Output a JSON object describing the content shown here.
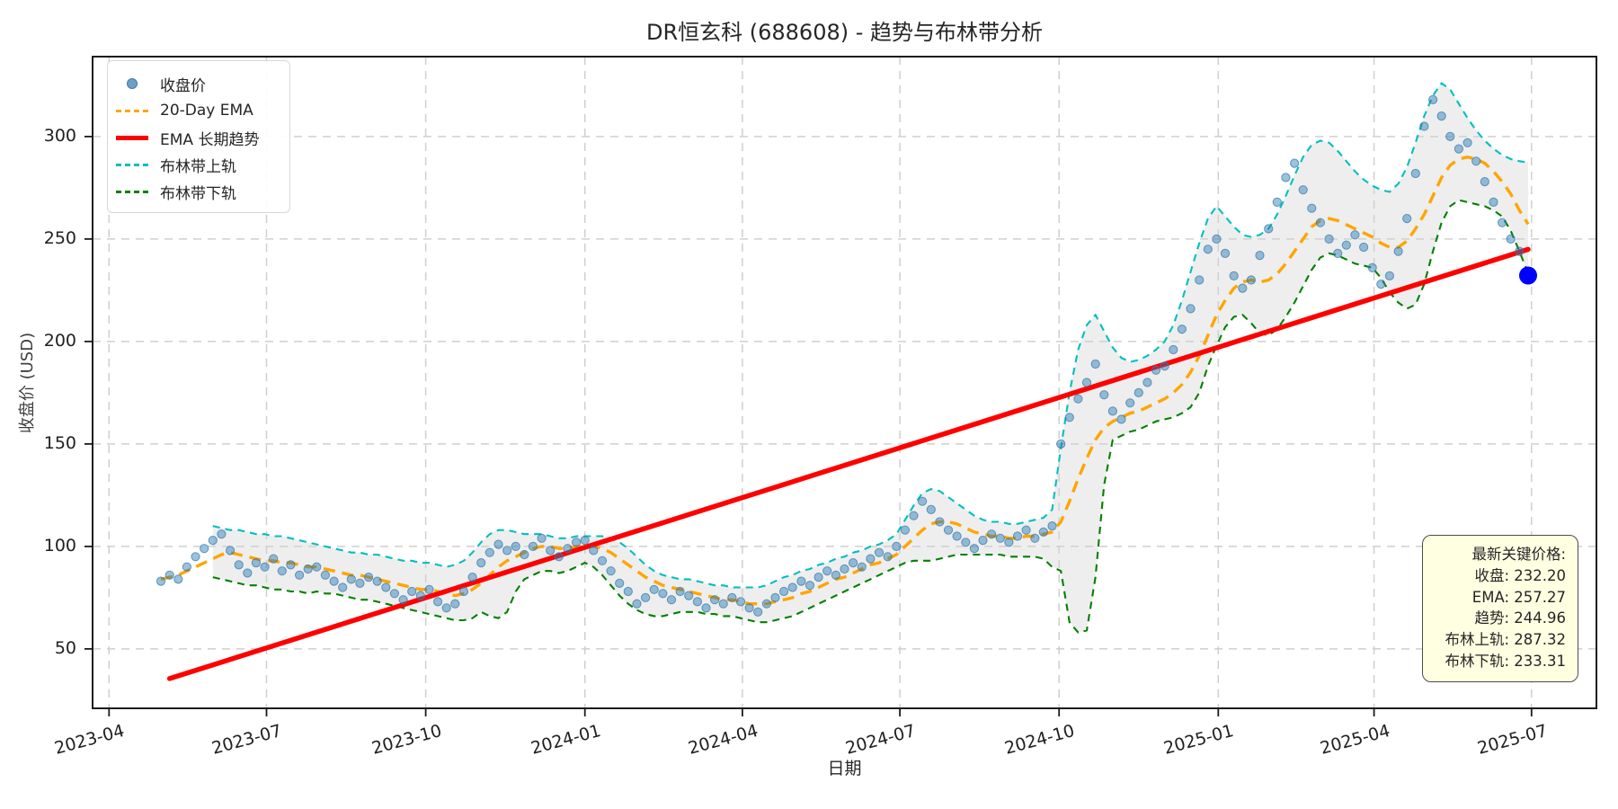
{
  "chart_data": {
    "type": "line",
    "title": "DR恒玄科 (688608) - 趋势与布林带分析",
    "xlabel": "日期",
    "ylabel": "收盘价 (USD)",
    "grid": true,
    "legend_position": "upper-left",
    "x_start_date": "2023-05-01",
    "x_interval_days": 5,
    "x_total_days": 790,
    "x_margin_days": 39.5,
    "ylim": [
      21,
      339
    ],
    "y_ticks": [
      "50",
      "100",
      "150",
      "200",
      "250",
      "300"
    ],
    "y_tick_values": [
      50,
      100,
      150,
      200,
      250,
      300
    ],
    "x_tick_dates": [
      "2023-04-01",
      "2023-07-01",
      "2023-10-01",
      "2024-01-01",
      "2024-04-01",
      "2024-07-01",
      "2024-10-01",
      "2025-01-01",
      "2025-04-01",
      "2025-07-01"
    ],
    "x_tick_labels": [
      "2023-04",
      "2023-07",
      "2023-10",
      "2024-01",
      "2024-04",
      "2024-07",
      "2024-10",
      "2025-01",
      "2025-04",
      "2025-07"
    ],
    "band_fill_color": "#d3d3d3",
    "series": [
      {
        "name": "收盘价",
        "type": "scatter",
        "color": "#1f77b4",
        "values": [
          83,
          86,
          84,
          90,
          95,
          99,
          103,
          106,
          98,
          91,
          87,
          92,
          90,
          94,
          88,
          91,
          86,
          89,
          90,
          86,
          83,
          80,
          84,
          82,
          85,
          83,
          80,
          77,
          74,
          78,
          76,
          79,
          73,
          70,
          72,
          78,
          85,
          92,
          97,
          101,
          98,
          100,
          96,
          100,
          104,
          98,
          95,
          99,
          102,
          103,
          98,
          93,
          88,
          82,
          78,
          72,
          75,
          79,
          77,
          74,
          78,
          76,
          73,
          70,
          74,
          72,
          75,
          73,
          70,
          68,
          72,
          75,
          78,
          80,
          83,
          81,
          85,
          88,
          86,
          89,
          92,
          90,
          94,
          97,
          95,
          100,
          108,
          115,
          122,
          118,
          112,
          108,
          105,
          102,
          99,
          103,
          106,
          104,
          102,
          105,
          108,
          104,
          107,
          110,
          150,
          163,
          172,
          180,
          189,
          174,
          166,
          162,
          170,
          175,
          180,
          186,
          188,
          196,
          206,
          216,
          230,
          245,
          250,
          243,
          232,
          226,
          230,
          242,
          255,
          268,
          280,
          287,
          274,
          265,
          258,
          250,
          243,
          247,
          252,
          246,
          236,
          228,
          232,
          244,
          260,
          282,
          305,
          318,
          310,
          300,
          294,
          297,
          288,
          278,
          268,
          258,
          250,
          244,
          232.2
        ]
      },
      {
        "name": "20-Day EMA",
        "type": "line",
        "style": "dashed",
        "color": "#ffa500",
        "values": [
          84,
          85,
          86,
          88,
          90,
          92,
          94,
          96,
          97,
          96,
          95,
          94,
          93,
          93,
          92,
          92,
          91,
          90,
          90,
          89,
          88,
          87,
          86,
          86,
          85,
          84,
          83,
          82,
          81,
          80,
          79,
          79,
          78,
          77,
          76,
          77,
          79,
          82,
          86,
          90,
          93,
          95,
          97,
          99,
          100,
          100,
          99,
          99,
          100,
          100,
          100,
          99,
          97,
          94,
          91,
          88,
          85,
          83,
          81,
          80,
          79,
          78,
          77,
          76,
          75,
          74,
          74,
          73,
          72,
          72,
          72,
          73,
          74,
          75,
          77,
          78,
          80,
          82,
          84,
          85,
          87,
          89,
          91,
          92,
          94,
          96,
          100,
          104,
          108,
          111,
          112,
          112,
          111,
          109,
          107,
          106,
          105,
          105,
          104,
          104,
          105,
          105,
          106,
          107,
          112,
          122,
          133,
          143,
          152,
          158,
          161,
          163,
          165,
          166,
          168,
          170,
          172,
          175,
          179,
          185,
          193,
          203,
          213,
          220,
          226,
          229,
          230,
          229,
          230,
          233,
          238,
          244,
          250,
          256,
          259,
          260,
          259,
          257,
          255,
          253,
          251,
          248,
          246,
          246,
          249,
          255,
          262,
          271,
          280,
          286,
          289,
          290,
          289,
          287,
          283,
          278,
          272,
          264,
          257.27
        ]
      },
      {
        "name": "EMA 长期趋势",
        "type": "trend-line",
        "color": "#ff0000",
        "start": {
          "index": 1,
          "value": 35.5
        },
        "end": {
          "index": 158,
          "value": 244.96
        }
      },
      {
        "name": "布林带上轨",
        "type": "line",
        "style": "dashed",
        "color": "#00bfbf",
        "values": [
          null,
          null,
          null,
          null,
          null,
          null,
          110,
          109,
          108,
          108,
          107,
          106,
          106,
          105,
          105,
          104,
          103,
          102,
          101,
          100,
          99,
          98,
          97,
          97,
          96,
          96,
          95,
          94,
          93,
          93,
          92,
          92,
          91,
          90,
          91,
          93,
          97,
          102,
          106,
          108,
          108,
          107,
          106,
          106,
          106,
          105,
          104,
          104,
          105,
          105,
          105,
          105,
          104,
          102,
          99,
          95,
          91,
          88,
          86,
          85,
          84,
          84,
          83,
          82,
          81,
          81,
          80,
          80,
          80,
          80,
          81,
          83,
          85,
          86,
          88,
          89,
          91,
          92,
          94,
          95,
          97,
          98,
          100,
          101,
          103,
          106,
          113,
          120,
          126,
          128,
          127,
          124,
          121,
          118,
          115,
          113,
          112,
          112,
          111,
          111,
          112,
          113,
          114,
          118,
          148,
          175,
          196,
          208,
          213,
          205,
          197,
          192,
          190,
          191,
          193,
          196,
          200,
          208,
          220,
          234,
          248,
          260,
          266,
          261,
          256,
          252,
          251,
          252,
          255,
          262,
          271,
          281,
          290,
          296,
          298,
          297,
          293,
          288,
          283,
          279,
          276,
          274,
          273,
          277,
          285,
          297,
          310,
          320,
          326,
          323,
          316,
          309,
          303,
          298,
          294,
          291,
          289,
          288,
          287.32
        ]
      },
      {
        "name": "布林带下轨",
        "type": "line",
        "style": "dashed",
        "color": "#008000",
        "values": [
          null,
          null,
          null,
          null,
          null,
          null,
          85,
          84,
          83,
          82,
          81,
          81,
          80,
          79,
          79,
          78,
          78,
          77,
          78,
          77,
          77,
          76,
          75,
          74,
          74,
          73,
          72,
          71,
          70,
          69,
          68,
          67,
          66,
          65,
          64,
          64,
          65,
          68,
          66,
          65,
          68,
          78,
          84,
          86,
          88,
          88,
          87,
          88,
          90,
          92,
          90,
          86,
          81,
          76,
          72,
          69,
          67,
          66,
          66,
          67,
          68,
          68,
          68,
          67,
          67,
          66,
          66,
          65,
          64,
          63,
          63,
          64,
          65,
          66,
          68,
          70,
          72,
          74,
          76,
          78,
          80,
          82,
          84,
          86,
          88,
          90,
          92,
          93,
          93,
          93,
          94,
          95,
          96,
          96,
          96,
          96,
          96,
          96,
          95,
          95,
          95,
          95,
          94,
          90,
          88,
          63,
          58,
          59,
          85,
          130,
          152,
          154,
          156,
          157,
          159,
          161,
          162,
          163,
          165,
          168,
          175,
          188,
          198,
          207,
          212,
          213,
          209,
          204,
          203,
          206,
          212,
          219,
          227,
          235,
          241,
          243,
          242,
          240,
          238,
          237,
          236,
          231,
          224,
          219,
          216,
          218,
          228,
          244,
          258,
          266,
          269,
          268,
          267,
          266,
          264,
          261,
          254,
          244,
          233.31
        ]
      }
    ],
    "last_point": {
      "value": 232.2,
      "color": "#0000ff"
    },
    "annotation": {
      "bg_color": "#ffffe0",
      "lines": [
        "最新关键价格:",
        "收盘: 232.20",
        "EMA: 257.27",
        "趋势: 244.96",
        "布林上轨: 287.32",
        "布林下轨: 233.31"
      ]
    }
  }
}
